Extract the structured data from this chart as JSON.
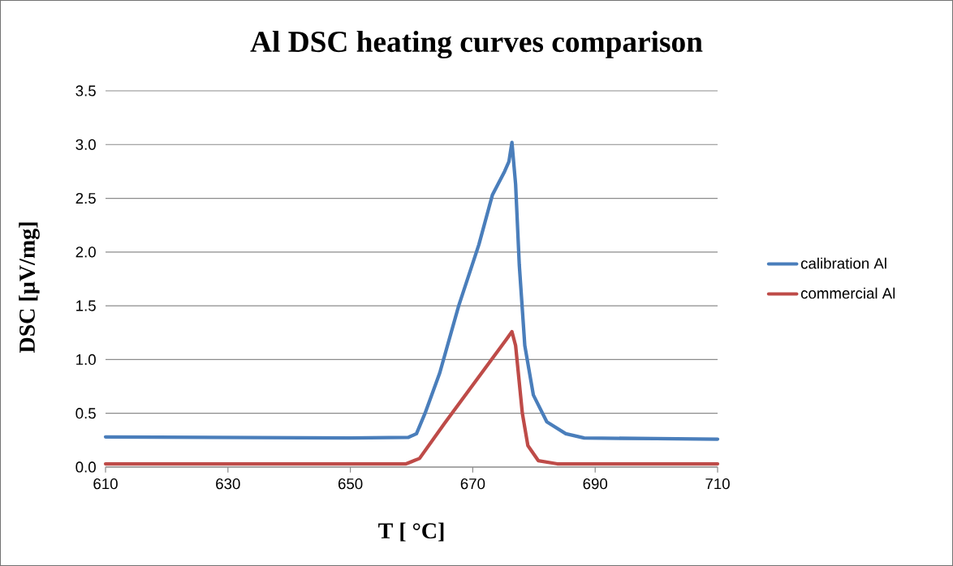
{
  "chart_data": {
    "type": "line",
    "title": "Al DSC heating curves comparison",
    "xlabel": "T [ °C]",
    "ylabel": "DSC [µV/mg]",
    "xlim": [
      610,
      710
    ],
    "ylim": [
      0,
      3.5
    ],
    "xticks": [
      610,
      630,
      650,
      670,
      690,
      710
    ],
    "yticks": [
      {
        "value": 0,
        "label": "0.0"
      },
      0.5,
      {
        "value": 1,
        "label": "1.0"
      },
      1.5,
      {
        "value": 2,
        "label": "2.0"
      },
      2.5,
      {
        "value": 3,
        "label": "3.0"
      },
      3.5
    ],
    "grid": "y",
    "legend": "right",
    "marker": "none",
    "line_style": "solid",
    "series": [
      {
        "name": "calibration Al",
        "color": "#4a7ebb",
        "x": [
          610,
          630,
          650,
          659.5,
          660.8,
          662.2,
          664.6,
          667.7,
          671.0,
          673.2,
          675.2,
          675.9,
          676.4,
          677.0,
          677.6,
          678.5,
          679.9,
          682.1,
          685.2,
          688.2,
          700,
          710
        ],
        "values": [
          0.28,
          0.275,
          0.27,
          0.277,
          0.31,
          0.5,
          0.875,
          1.5,
          2.07,
          2.53,
          2.75,
          2.84,
          3.02,
          2.63,
          1.88,
          1.13,
          0.67,
          0.42,
          0.31,
          0.27,
          0.265,
          0.26
        ]
      },
      {
        "name": "commercial Al",
        "color": "#be4b48",
        "x": [
          610,
          630,
          657,
          659.1,
          661.3,
          665.3,
          675.4,
          676.4,
          677.0,
          678.1,
          679.0,
          680.7,
          683.8,
          700,
          710
        ],
        "values": [
          0.03,
          0.03,
          0.03,
          0.03,
          0.08,
          0.4,
          1.18,
          1.26,
          1.13,
          0.5,
          0.2,
          0.06,
          0.03,
          0.03,
          0.03
        ]
      }
    ]
  }
}
